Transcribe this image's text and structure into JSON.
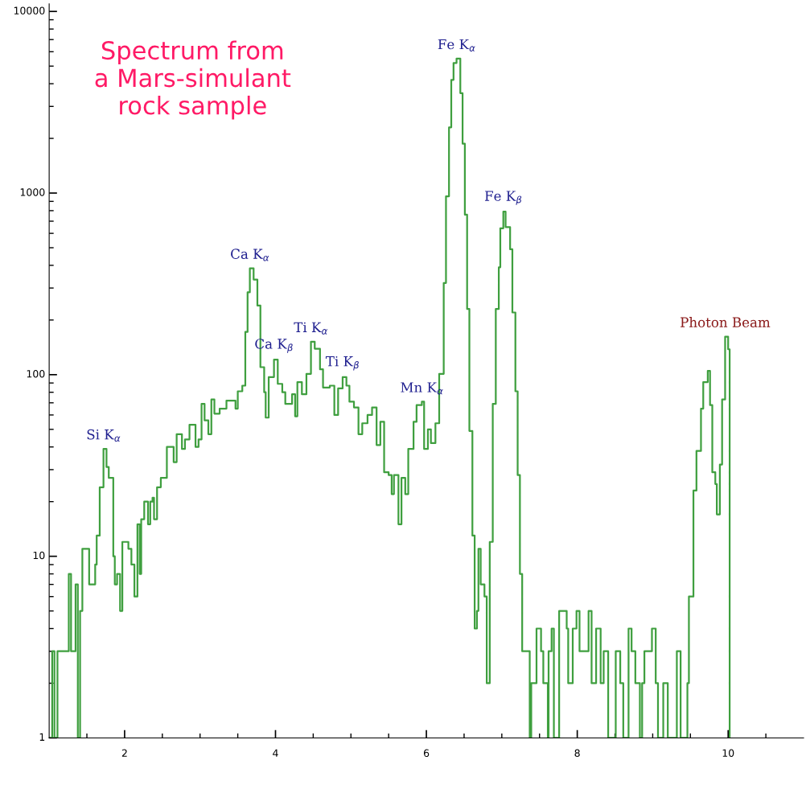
{
  "chart_data": {
    "type": "step",
    "title": "Spectrum from\na Mars-simulant\nrock sample",
    "x": [
      1.0,
      1.04,
      1.07,
      1.11,
      1.26,
      1.29,
      1.35,
      1.38,
      1.41,
      1.44,
      1.53,
      1.61,
      1.63,
      1.67,
      1.72,
      1.76,
      1.79,
      1.85,
      1.87,
      1.9,
      1.94,
      1.97,
      2.05,
      2.09,
      2.13,
      2.17,
      2.2,
      2.22,
      2.26,
      2.31,
      2.34,
      2.37,
      2.39,
      2.43,
      2.48,
      2.56,
      2.65,
      2.69,
      2.76,
      2.8,
      2.86,
      2.94,
      2.98,
      3.02,
      3.06,
      3.11,
      3.15,
      3.19,
      3.26,
      3.35,
      3.47,
      3.5,
      3.56,
      3.6,
      3.63,
      3.66,
      3.71,
      3.76,
      3.8,
      3.85,
      3.87,
      3.91,
      3.98,
      4.03,
      4.09,
      4.13,
      4.22,
      4.26,
      4.29,
      4.35,
      4.41,
      4.47,
      4.52,
      4.59,
      4.63,
      4.72,
      4.78,
      4.83,
      4.89,
      4.94,
      4.98,
      5.04,
      5.1,
      5.15,
      5.22,
      5.28,
      5.34,
      5.39,
      5.44,
      5.5,
      5.54,
      5.57,
      5.63,
      5.67,
      5.72,
      5.76,
      5.83,
      5.87,
      5.94,
      5.97,
      6.02,
      6.06,
      6.12,
      6.17,
      6.23,
      6.26,
      6.3,
      6.33,
      6.36,
      6.4,
      6.45,
      6.48,
      6.51,
      6.54,
      6.57,
      6.61,
      6.64,
      6.67,
      6.69,
      6.72,
      6.77,
      6.8,
      6.84,
      6.88,
      6.92,
      6.96,
      6.98,
      7.02,
      7.05,
      7.11,
      7.14,
      7.18,
      7.21,
      7.24,
      7.27,
      7.37,
      7.39,
      7.46,
      7.52,
      7.55,
      7.61,
      7.62,
      7.66,
      7.69,
      7.76,
      7.86,
      7.88,
      7.94,
      7.99,
      8.03,
      8.15,
      8.19,
      8.25,
      8.31,
      8.35,
      8.41,
      8.51,
      8.57,
      8.61,
      8.68,
      8.72,
      8.77,
      8.83,
      8.86,
      8.89,
      8.99,
      9.04,
      9.07,
      9.14,
      9.2,
      9.32,
      9.37,
      9.46,
      9.48,
      9.54,
      9.58,
      9.64,
      9.67,
      9.73,
      9.76,
      9.79,
      9.83,
      9.85,
      9.89,
      9.92,
      9.96,
      10.0,
      10.02
    ],
    "values": [
      1,
      3,
      1,
      3,
      8,
      3,
      7,
      1,
      5,
      11,
      7,
      9,
      13,
      24,
      39,
      31,
      27,
      10,
      7,
      8,
      5,
      12,
      11,
      9,
      6,
      15,
      8,
      16,
      20,
      15,
      20,
      21,
      16,
      24,
      27,
      40,
      33,
      47,
      39,
      44,
      53,
      40,
      44,
      69,
      56,
      47,
      73,
      61,
      65,
      72,
      65,
      81,
      87,
      172,
      284,
      385,
      334,
      240,
      110,
      80,
      58,
      97,
      121,
      89,
      80,
      69,
      78,
      59,
      91,
      78,
      101,
      152,
      139,
      107,
      85,
      87,
      60,
      84,
      97,
      87,
      71,
      66,
      47,
      54,
      60,
      66,
      41,
      55,
      29,
      28,
      22,
      28,
      15,
      27,
      22,
      39,
      55,
      68,
      71,
      39,
      50,
      42,
      54,
      101,
      320,
      960,
      2300,
      4200,
      5200,
      5500,
      3550,
      1870,
      760,
      230,
      49,
      13,
      4,
      5,
      11,
      7,
      6,
      2,
      12,
      69,
      230,
      390,
      640,
      790,
      650,
      490,
      220,
      81,
      28,
      8,
      3,
      1,
      2,
      4,
      3,
      2,
      1,
      3,
      4,
      1,
      5,
      4,
      2,
      4,
      5,
      3,
      5,
      2,
      4,
      2,
      3,
      1,
      3,
      2,
      1,
      4,
      3,
      2,
      1,
      2,
      3,
      4,
      2,
      1,
      2,
      1,
      3,
      1,
      2,
      6,
      23,
      38,
      65,
      91,
      105,
      68,
      29,
      25,
      17,
      32,
      73,
      162,
      138,
      1
    ],
    "color": "#3f9f3f",
    "log": "y",
    "xlim": [
      1,
      11
    ],
    "ylim": [
      1,
      11000
    ],
    "xticks": [
      {
        "value": 1.5,
        "label": null
      },
      2,
      {
        "value": 2.5,
        "label": null
      },
      {
        "value": 3,
        "label": null
      },
      {
        "value": 3.5,
        "label": null
      },
      4,
      {
        "value": 4.5,
        "label": null
      },
      {
        "value": 5,
        "label": null
      },
      {
        "value": 5.5,
        "label": null
      },
      6,
      {
        "value": 6.5,
        "label": null
      },
      {
        "value": 7,
        "label": null
      },
      {
        "value": 7.5,
        "label": null
      },
      8,
      {
        "value": 8.5,
        "label": null
      },
      {
        "value": 9,
        "label": null
      },
      {
        "value": 9.5,
        "label": null
      },
      10,
      {
        "value": 10.5,
        "label": null
      }
    ],
    "yticks": [
      1,
      {
        "value": 2,
        "label": null
      },
      {
        "value": 3,
        "label": null
      },
      {
        "value": 4,
        "label": null
      },
      {
        "value": 5,
        "label": null
      },
      {
        "value": 6,
        "label": null
      },
      {
        "value": 7,
        "label": null
      },
      {
        "value": 8,
        "label": null
      },
      {
        "value": 9,
        "label": null
      },
      10,
      {
        "value": 20,
        "label": null
      },
      {
        "value": 30,
        "label": null
      },
      {
        "value": 40,
        "label": null
      },
      {
        "value": 50,
        "label": null
      },
      {
        "value": 60,
        "label": null
      },
      {
        "value": 70,
        "label": null
      },
      {
        "value": 80,
        "label": null
      },
      {
        "value": 90,
        "label": null
      },
      100,
      {
        "value": 200,
        "label": null
      },
      {
        "value": 300,
        "label": null
      },
      {
        "value": 400,
        "label": null
      },
      {
        "value": 500,
        "label": null
      },
      {
        "value": 600,
        "label": null
      },
      {
        "value": 700,
        "label": null
      },
      {
        "value": 800,
        "label": null
      },
      {
        "value": 900,
        "label": null
      },
      1000,
      {
        "value": 2000,
        "label": null
      },
      {
        "value": 3000,
        "label": null
      },
      {
        "value": 4000,
        "label": null
      },
      {
        "value": 5000,
        "label": null
      },
      {
        "value": 6000,
        "label": null
      },
      {
        "value": 7000,
        "label": null
      },
      {
        "value": 8000,
        "label": null
      },
      {
        "value": 9000,
        "label": null
      },
      10000
    ],
    "grid": false,
    "annotations": [
      {
        "text": "Si K$_{α}$",
        "x": 1.72,
        "y": 39
      },
      {
        "text": "Ca K$_{α}$",
        "x": 3.66,
        "y": 385
      },
      {
        "text": "Ca K$_{β}$",
        "x": 3.98,
        "y": 121
      },
      {
        "text": "Ti K$_{α}$",
        "x": 4.47,
        "y": 152
      },
      {
        "text": "Ti K$_{β}$",
        "x": 4.89,
        "y": 97
      },
      {
        "text": "Mn K$_{α}$",
        "x": 5.94,
        "y": 71
      },
      {
        "text": "Fe K$_{α}$",
        "x": 6.4,
        "y": 5500
      },
      {
        "text": "Fe K$_{β}$",
        "x": 7.02,
        "y": 790
      },
      {
        "text": "Photon Beam",
        "x": 9.96,
        "y": 162
      }
    ]
  }
}
